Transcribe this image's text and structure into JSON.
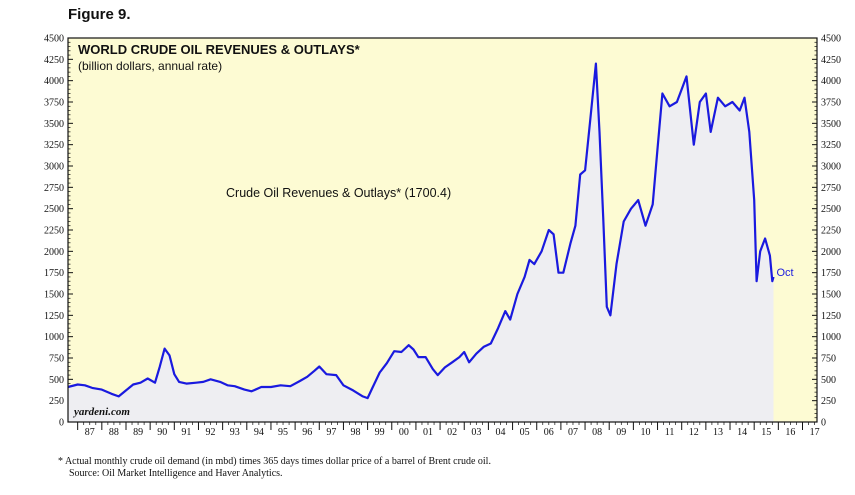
{
  "figure_label": "Figure 9.",
  "footnote": {
    "line1": "*  Actual monthly crude oil demand (in mbd) times 365 days times dollar price of a barrel of Brent crude oil.",
    "line2": "Source: Oil Market Intelligence and Haver Analytics."
  },
  "chart_data": {
    "type": "area",
    "title": "WORLD CRUDE OIL REVENUES & OUTLAYS*",
    "subtitle": "(billion dollars, annual rate)",
    "watermark": "yardeni.com",
    "end_label": "Oct",
    "xlabel": "",
    "ylabel": "",
    "ylim": [
      0,
      4500
    ],
    "xlim": [
      1986.6,
      2017.6
    ],
    "y_ticks": [
      0,
      250,
      500,
      750,
      1000,
      1250,
      1500,
      1750,
      2000,
      2250,
      2500,
      2750,
      3000,
      3250,
      3500,
      3750,
      4000,
      4250,
      4500
    ],
    "x_ticks": [
      "87",
      "88",
      "89",
      "90",
      "91",
      "92",
      "93",
      "94",
      "95",
      "96",
      "97",
      "98",
      "99",
      "00",
      "01",
      "02",
      "03",
      "04",
      "05",
      "06",
      "07",
      "08",
      "09",
      "10",
      "11",
      "12",
      "13",
      "14",
      "15",
      "16",
      "17"
    ],
    "colors": {
      "line": "#1a1adf",
      "fill": "#eeeef2",
      "background": "#fdfbd3",
      "future": "#fdfbd3"
    },
    "series": [
      {
        "name": "Crude Oil Revenues & Outlays* (1700.4)",
        "points": [
          [
            1986.6,
            410
          ],
          [
            1987.0,
            440
          ],
          [
            1987.3,
            430
          ],
          [
            1987.6,
            400
          ],
          [
            1988.0,
            380
          ],
          [
            1988.4,
            330
          ],
          [
            1988.7,
            300
          ],
          [
            1989.0,
            370
          ],
          [
            1989.3,
            440
          ],
          [
            1989.6,
            460
          ],
          [
            1989.9,
            510
          ],
          [
            1990.2,
            460
          ],
          [
            1990.4,
            650
          ],
          [
            1990.6,
            860
          ],
          [
            1990.8,
            780
          ],
          [
            1991.0,
            560
          ],
          [
            1991.2,
            470
          ],
          [
            1991.5,
            450
          ],
          [
            1991.9,
            460
          ],
          [
            1992.2,
            470
          ],
          [
            1992.5,
            500
          ],
          [
            1992.9,
            470
          ],
          [
            1993.2,
            430
          ],
          [
            1993.5,
            420
          ],
          [
            1993.9,
            380
          ],
          [
            1994.2,
            360
          ],
          [
            1994.6,
            410
          ],
          [
            1995.0,
            410
          ],
          [
            1995.4,
            430
          ],
          [
            1995.8,
            420
          ],
          [
            1996.2,
            480
          ],
          [
            1996.5,
            530
          ],
          [
            1996.8,
            600
          ],
          [
            1997.0,
            650
          ],
          [
            1997.3,
            560
          ],
          [
            1997.7,
            550
          ],
          [
            1998.0,
            430
          ],
          [
            1998.4,
            370
          ],
          [
            1998.8,
            300
          ],
          [
            1999.0,
            280
          ],
          [
            1999.2,
            400
          ],
          [
            1999.5,
            580
          ],
          [
            1999.8,
            690
          ],
          [
            2000.1,
            830
          ],
          [
            2000.4,
            820
          ],
          [
            2000.7,
            900
          ],
          [
            2000.9,
            850
          ],
          [
            2001.1,
            760
          ],
          [
            2001.4,
            760
          ],
          [
            2001.7,
            620
          ],
          [
            2001.9,
            550
          ],
          [
            2002.2,
            640
          ],
          [
            2002.5,
            700
          ],
          [
            2002.8,
            760
          ],
          [
            2003.0,
            820
          ],
          [
            2003.2,
            700
          ],
          [
            2003.5,
            800
          ],
          [
            2003.8,
            880
          ],
          [
            2004.1,
            920
          ],
          [
            2004.4,
            1100
          ],
          [
            2004.7,
            1300
          ],
          [
            2004.9,
            1200
          ],
          [
            2005.2,
            1500
          ],
          [
            2005.5,
            1700
          ],
          [
            2005.7,
            1900
          ],
          [
            2005.9,
            1850
          ],
          [
            2006.2,
            2000
          ],
          [
            2006.5,
            2250
          ],
          [
            2006.7,
            2200
          ],
          [
            2006.9,
            1750
          ],
          [
            2007.1,
            1750
          ],
          [
            2007.4,
            2100
          ],
          [
            2007.6,
            2300
          ],
          [
            2007.8,
            2900
          ],
          [
            2008.0,
            2950
          ],
          [
            2008.2,
            3500
          ],
          [
            2008.45,
            4200
          ],
          [
            2008.6,
            3400
          ],
          [
            2008.75,
            2400
          ],
          [
            2008.9,
            1350
          ],
          [
            2009.05,
            1250
          ],
          [
            2009.3,
            1850
          ],
          [
            2009.6,
            2350
          ],
          [
            2009.9,
            2500
          ],
          [
            2010.2,
            2600
          ],
          [
            2010.5,
            2300
          ],
          [
            2010.8,
            2550
          ],
          [
            2011.0,
            3200
          ],
          [
            2011.2,
            3850
          ],
          [
            2011.5,
            3700
          ],
          [
            2011.8,
            3750
          ],
          [
            2012.0,
            3900
          ],
          [
            2012.2,
            4050
          ],
          [
            2012.5,
            3250
          ],
          [
            2012.75,
            3750
          ],
          [
            2013.0,
            3850
          ],
          [
            2013.2,
            3400
          ],
          [
            2013.5,
            3800
          ],
          [
            2013.8,
            3700
          ],
          [
            2014.1,
            3750
          ],
          [
            2014.4,
            3650
          ],
          [
            2014.6,
            3800
          ],
          [
            2014.8,
            3400
          ],
          [
            2015.0,
            2600
          ],
          [
            2015.1,
            1650
          ],
          [
            2015.25,
            2000
          ],
          [
            2015.45,
            2150
          ],
          [
            2015.65,
            1950
          ],
          [
            2015.75,
            1650
          ],
          [
            2015.8,
            1700
          ]
        ]
      }
    ]
  }
}
